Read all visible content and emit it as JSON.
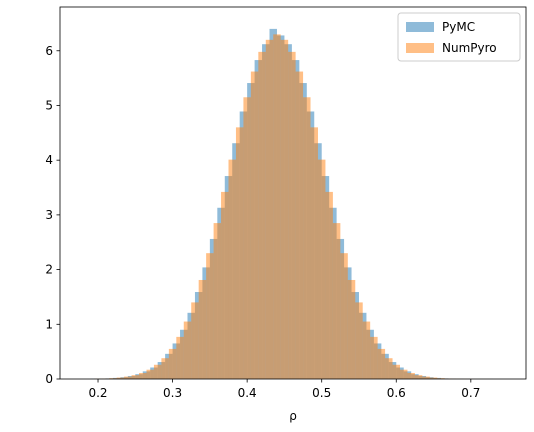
{
  "chart_data": {
    "type": "histogram",
    "xlabel": "ρ",
    "xlim": [
      0.149,
      0.774
    ],
    "ylim": [
      0,
      6.8
    ],
    "xticks": [
      0.2,
      0.3,
      0.4,
      0.5,
      0.6,
      0.7
    ],
    "yticks": [
      0,
      1,
      2,
      3,
      4,
      5,
      6
    ],
    "legend": "upper right",
    "opacity": 0.5,
    "series": [
      {
        "name": "PyMC",
        "color": "#1f77b4",
        "bins": [
          0.19,
          0.2,
          0.21,
          0.22,
          0.23,
          0.24,
          0.25,
          0.26,
          0.27,
          0.28,
          0.29,
          0.3,
          0.31,
          0.32,
          0.33,
          0.34,
          0.35,
          0.36,
          0.37,
          0.38,
          0.39,
          0.4,
          0.41,
          0.42,
          0.43,
          0.44,
          0.45,
          0.46,
          0.47,
          0.48,
          0.49,
          0.5,
          0.51,
          0.52,
          0.53,
          0.54,
          0.55,
          0.56,
          0.57,
          0.58,
          0.59,
          0.6,
          0.61,
          0.62,
          0.63,
          0.64,
          0.65,
          0.66,
          0.67,
          0.68,
          0.69,
          0.7,
          0.71,
          0.72,
          0.73
        ],
        "values": [
          0.004,
          0.006,
          0.011,
          0.02,
          0.033,
          0.055,
          0.088,
          0.14,
          0.21,
          0.31,
          0.46,
          0.65,
          0.9,
          1.21,
          1.59,
          2.04,
          2.56,
          3.13,
          3.71,
          4.31,
          4.89,
          5.41,
          5.83,
          6.12,
          6.4,
          6.28,
          6.12,
          5.83,
          5.41,
          4.89,
          4.31,
          3.71,
          3.13,
          2.56,
          2.04,
          1.59,
          1.21,
          0.9,
          0.65,
          0.46,
          0.31,
          0.21,
          0.14,
          0.088,
          0.055,
          0.033,
          0.02,
          0.011,
          0.006,
          0.004,
          0.002,
          0.001,
          0.001,
          0.001
        ]
      },
      {
        "name": "NumPyro",
        "color": "#ff7f0e",
        "bins": [
          0.195,
          0.205,
          0.215,
          0.225,
          0.235,
          0.245,
          0.255,
          0.265,
          0.275,
          0.285,
          0.295,
          0.305,
          0.315,
          0.325,
          0.335,
          0.345,
          0.355,
          0.365,
          0.375,
          0.385,
          0.395,
          0.405,
          0.415,
          0.425,
          0.435,
          0.445,
          0.455,
          0.465,
          0.475,
          0.485,
          0.495,
          0.505,
          0.515,
          0.525,
          0.535,
          0.545,
          0.555,
          0.565,
          0.575,
          0.585,
          0.595,
          0.605,
          0.615,
          0.625,
          0.635,
          0.645,
          0.655,
          0.665,
          0.675,
          0.685,
          0.695,
          0.705,
          0.715,
          0.725
        ],
        "values": [
          0.005,
          0.008,
          0.015,
          0.026,
          0.044,
          0.07,
          0.11,
          0.17,
          0.26,
          0.38,
          0.55,
          0.77,
          1.05,
          1.4,
          1.81,
          2.3,
          2.85,
          3.42,
          4.01,
          4.6,
          5.15,
          5.62,
          5.98,
          6.2,
          6.3,
          6.2,
          5.98,
          5.62,
          5.15,
          4.6,
          4.01,
          3.42,
          2.85,
          2.3,
          1.81,
          1.4,
          1.05,
          0.77,
          0.55,
          0.38,
          0.26,
          0.17,
          0.11,
          0.07,
          0.044,
          0.026,
          0.015,
          0.008,
          0.005,
          0.003,
          0.002,
          0.001,
          0.001
        ]
      }
    ]
  }
}
